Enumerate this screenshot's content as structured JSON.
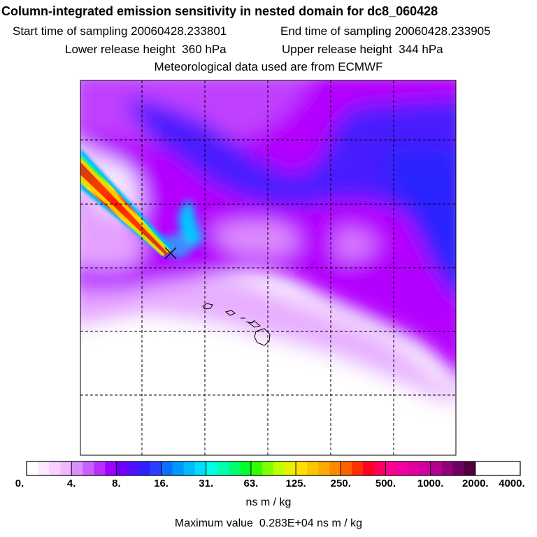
{
  "chart_data": {
    "type": "heatmap",
    "title": "Column-integrated emission sensitivity in nested domain for dc8_060428",
    "start_label": "Start time of sampling",
    "start_time": "20060428.233801",
    "end_label": "End time of sampling",
    "end_time": "20060428.233905",
    "lower_label": "Lower release height",
    "lower_height": "360 hPa",
    "upper_label": "Upper release height",
    "upper_height": "344 hPa",
    "met_note": "Meteorological data used are from ECMWF",
    "colorbar": {
      "tick_labels": [
        "0.",
        "4.",
        "8.",
        "16.",
        "31.",
        "63.",
        "125.",
        "250.",
        "500.",
        "1000.",
        "2000.",
        "4000."
      ],
      "tick_values": [
        0,
        4,
        8,
        16,
        31,
        63,
        125,
        250,
        500,
        1000,
        2000,
        4000
      ],
      "units": "ns m / kg"
    },
    "max_label": "Maximum value",
    "max_value": "0.283E+04",
    "max_units": "ns m / kg",
    "grid": true
  },
  "colors": {
    "white": "#ffffff",
    "light_magenta": "#f0c8ff",
    "magenta": "#b400ff",
    "violet": "#8a00ff",
    "blue": "#3c28ff",
    "cyan": "#00e6ff",
    "green": "#00ff64",
    "yellow": "#ffe600",
    "orange": "#ff8c00",
    "red": "#ff0000"
  }
}
